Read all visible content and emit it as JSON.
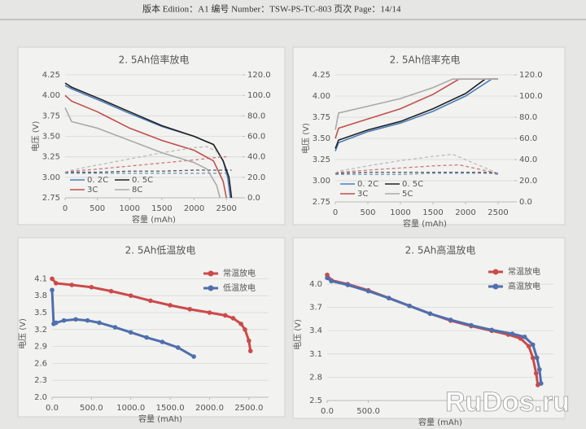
{
  "header": "版本 Edition：A1 编号 Number：TSW-PS-TC-803 页次 Page：14/14",
  "watermark": "RuDos.ru",
  "chart_data": [
    {
      "type": "line",
      "title": "2. 5Ah倍率放电",
      "x_label": "容量 (mAh)",
      "y_label": "电压 (V)",
      "legend": "lower left",
      "grid": true,
      "markers": false,
      "xlim": [
        0,
        2750
      ],
      "xticks": [
        0,
        500,
        1000,
        1500,
        2000,
        2500
      ],
      "ylim": [
        2.75,
        4.25
      ],
      "yticks": [
        2.75,
        {
          "value": 3,
          "label": "3.00"
        },
        3.25,
        {
          "value": 3.5,
          "label": "3.50"
        },
        3.75,
        {
          "value": 4,
          "label": "4.00"
        },
        4.25
      ],
      "y2lim": [
        0,
        120
      ],
      "y2ticks": [
        {
          "value": 0,
          "label": "0.0"
        },
        {
          "value": 20,
          "label": "20.0"
        },
        {
          "value": 40,
          "label": "40.0"
        },
        {
          "value": 60,
          "label": "60.0"
        },
        {
          "value": 80,
          "label": "80.0"
        },
        {
          "value": 100,
          "label": "100.0"
        },
        {
          "value": 120,
          "label": "120.0"
        }
      ],
      "series": [
        {
          "name": "0. 2C",
          "color": "#4a7ebb",
          "x": [
            0,
            100,
            500,
            1000,
            1500,
            2000,
            2300,
            2450,
            2520,
            2560
          ],
          "values": [
            4.12,
            4.08,
            3.95,
            3.78,
            3.62,
            3.5,
            3.4,
            3.2,
            3.0,
            2.75
          ],
          "y2_values": [
            24,
            24,
            24,
            24,
            24,
            24,
            24,
            24,
            24,
            24
          ]
        },
        {
          "name": "0. 5C",
          "color": "#222222",
          "x": [
            0,
            100,
            500,
            1000,
            1500,
            2000,
            2300,
            2450,
            2540,
            2580
          ],
          "values": [
            4.15,
            4.1,
            3.97,
            3.8,
            3.63,
            3.5,
            3.4,
            3.2,
            3.0,
            2.75
          ],
          "y2_values": [
            25,
            25,
            25,
            26,
            26,
            27,
            27,
            27,
            27,
            27
          ]
        },
        {
          "name": "3C",
          "color": "#c0504d",
          "x": [
            0,
            100,
            500,
            1000,
            1500,
            2000,
            2300,
            2450,
            2500
          ],
          "values": [
            4.0,
            3.93,
            3.8,
            3.6,
            3.45,
            3.33,
            3.2,
            2.95,
            2.75
          ],
          "y2_values": [
            25,
            26,
            28,
            31,
            34,
            37,
            39,
            40,
            40
          ]
        },
        {
          "name": "8C",
          "color": "#aaaaaa",
          "x": [
            0,
            100,
            500,
            1000,
            1500,
            2000,
            2200,
            2350,
            2400
          ],
          "values": [
            3.85,
            3.68,
            3.6,
            3.45,
            3.3,
            3.18,
            3.1,
            2.9,
            2.75
          ],
          "y2_values": [
            25,
            27,
            32,
            38,
            44,
            49,
            50,
            45,
            40
          ]
        }
      ]
    },
    {
      "type": "line",
      "title": "2. 5Ah倍率充电",
      "x_label": "容量 (mAh)",
      "y_label": "电压 (V)",
      "legend": "lower left",
      "grid": true,
      "markers": false,
      "xlim": [
        0,
        2750
      ],
      "xticks": [
        0,
        500,
        1000,
        1500,
        2000,
        2500
      ],
      "ylim": [
        2.75,
        4.25
      ],
      "yticks": [
        2.75,
        {
          "value": 3,
          "label": "3.00"
        },
        3.25,
        {
          "value": 3.5,
          "label": "3.50"
        },
        3.75,
        {
          "value": 4,
          "label": "4.00"
        },
        4.25
      ],
      "y2lim": [
        0,
        120
      ],
      "y2ticks": [
        {
          "value": 0,
          "label": "0.0"
        },
        {
          "value": 20,
          "label": "20.0"
        },
        {
          "value": 40,
          "label": "40.0"
        },
        {
          "value": 60,
          "label": "60.0"
        },
        {
          "value": 80,
          "label": "80.0"
        },
        {
          "value": 100,
          "label": "100.0"
        },
        {
          "value": 120,
          "label": "120.0"
        }
      ],
      "series": [
        {
          "name": "0. 2C",
          "color": "#4a7ebb",
          "x": [
            0,
            50,
            500,
            1000,
            1500,
            2000,
            2400,
            2500
          ],
          "values": [
            3.35,
            3.45,
            3.58,
            3.68,
            3.82,
            4.0,
            4.2,
            4.2
          ],
          "y2_values": [
            26,
            26,
            26,
            26,
            27,
            27,
            27,
            26
          ]
        },
        {
          "name": "0. 5C",
          "color": "#222222",
          "x": [
            0,
            50,
            500,
            1000,
            1500,
            2000,
            2300,
            2500
          ],
          "values": [
            3.38,
            3.48,
            3.6,
            3.7,
            3.85,
            4.03,
            4.2,
            4.2
          ],
          "y2_values": [
            27,
            27,
            28,
            28,
            28,
            28,
            28,
            27
          ]
        },
        {
          "name": "3C",
          "color": "#c0504d",
          "x": [
            0,
            50,
            500,
            1000,
            1500,
            1900,
            2500
          ],
          "values": [
            3.5,
            3.62,
            3.73,
            3.85,
            4.02,
            4.2,
            4.2
          ],
          "y2_values": [
            27,
            28,
            30,
            32,
            34,
            35,
            27
          ]
        },
        {
          "name": "5C",
          "color": "#aaaaaa",
          "x": [
            0,
            50,
            500,
            1000,
            1500,
            1800,
            2500
          ],
          "values": [
            3.6,
            3.8,
            3.88,
            3.97,
            4.1,
            4.2,
            4.2
          ],
          "y2_values": [
            27,
            29,
            34,
            39,
            43,
            45,
            27
          ]
        }
      ]
    },
    {
      "type": "line",
      "title": "2. 5Ah低温放电",
      "x_label": "容量 (mAh)",
      "y_label": "电压 (V)",
      "legend": "upper right",
      "grid": true,
      "markers": true,
      "xlim": [
        0,
        2750
      ],
      "xticks": [
        {
          "value": 0,
          "label": "0.0"
        },
        {
          "value": 500,
          "label": "500.0"
        },
        {
          "value": 1000,
          "label": "1000.0"
        },
        {
          "value": 1500,
          "label": "1500.0"
        },
        {
          "value": 2000,
          "label": "2000.0"
        },
        {
          "value": 2500,
          "label": "2500.0"
        }
      ],
      "ylim": [
        2.0,
        4.25
      ],
      "yticks": [
        {
          "value": 2,
          "label": "2.0"
        },
        2.3,
        2.6,
        2.9,
        3.2,
        3.5,
        3.8,
        4.1
      ],
      "series": [
        {
          "name": "常温放电",
          "color": "#cc4a4a",
          "x": [
            0,
            50,
            250,
            500,
            750,
            1000,
            1250,
            1500,
            1750,
            2000,
            2200,
            2300,
            2400,
            2450,
            2500,
            2520
          ],
          "values": [
            4.1,
            4.02,
            3.99,
            3.95,
            3.88,
            3.8,
            3.71,
            3.63,
            3.56,
            3.5,
            3.45,
            3.4,
            3.3,
            3.2,
            3.0,
            2.82
          ]
        },
        {
          "name": "低温放电",
          "color": "#4f6fad",
          "x": [
            0,
            20,
            50,
            150,
            300,
            450,
            600,
            800,
            1000,
            1200,
            1400,
            1600,
            1800
          ],
          "values": [
            3.9,
            3.3,
            3.32,
            3.36,
            3.38,
            3.36,
            3.32,
            3.24,
            3.15,
            3.06,
            2.98,
            2.88,
            2.72
          ]
        }
      ]
    },
    {
      "type": "line",
      "title": "2. 5Ah高温放电",
      "x_label": "容量 (mAh)",
      "y_label": "电压 (V)",
      "legend": "upper right",
      "grid": true,
      "markers": true,
      "xlim": [
        0,
        2750
      ],
      "xticks": [
        {
          "value": 0,
          "label": "0.0"
        },
        {
          "value": 500,
          "label": "500.0"
        }
      ],
      "ylim": [
        2.5,
        4.2
      ],
      "yticks": [
        2.5,
        2.8,
        3.1,
        3.4,
        3.7,
        {
          "value": 4,
          "label": "4.0"
        }
      ],
      "series": [
        {
          "name": "常温放电",
          "color": "#cc4a4a",
          "x": [
            0,
            50,
            250,
            500,
            750,
            1000,
            1250,
            1500,
            1750,
            2000,
            2200,
            2350,
            2450,
            2500,
            2540,
            2560
          ],
          "values": [
            4.12,
            4.05,
            4.0,
            3.92,
            3.82,
            3.72,
            3.62,
            3.53,
            3.46,
            3.4,
            3.35,
            3.3,
            3.2,
            3.05,
            2.85,
            2.7
          ]
        },
        {
          "name": "高温放电",
          "color": "#4f6fad",
          "x": [
            0,
            50,
            250,
            500,
            750,
            1000,
            1250,
            1500,
            1750,
            2000,
            2250,
            2400,
            2500,
            2550,
            2580,
            2600
          ],
          "values": [
            4.08,
            4.04,
            3.99,
            3.91,
            3.82,
            3.72,
            3.62,
            3.54,
            3.47,
            3.41,
            3.36,
            3.32,
            3.22,
            3.05,
            2.9,
            2.72
          ]
        }
      ]
    }
  ]
}
